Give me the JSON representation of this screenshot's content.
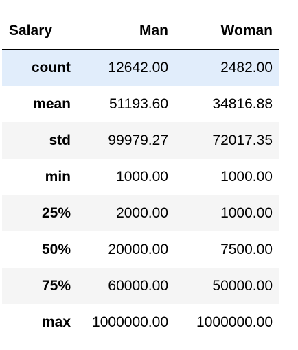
{
  "table": {
    "index_name": "Salary",
    "columns": [
      "Man",
      "Woman"
    ],
    "rows": [
      {
        "label": "count",
        "values": [
          "12642.00",
          "2482.00"
        ]
      },
      {
        "label": "mean",
        "values": [
          "51193.60",
          "34816.88"
        ]
      },
      {
        "label": "std",
        "values": [
          "99979.27",
          "72017.35"
        ]
      },
      {
        "label": "min",
        "values": [
          "1000.00",
          "1000.00"
        ]
      },
      {
        "label": "25%",
        "values": [
          "2000.00",
          "1000.00"
        ]
      },
      {
        "label": "50%",
        "values": [
          "20000.00",
          "7500.00"
        ]
      },
      {
        "label": "75%",
        "values": [
          "60000.00",
          "50000.00"
        ]
      },
      {
        "label": "max",
        "values": [
          "1000000.00",
          "1000000.00"
        ]
      }
    ],
    "colors": {
      "stripe": "#f5f5f5",
      "hover_row": "#e1edfb",
      "header_rule": "#000000"
    }
  }
}
